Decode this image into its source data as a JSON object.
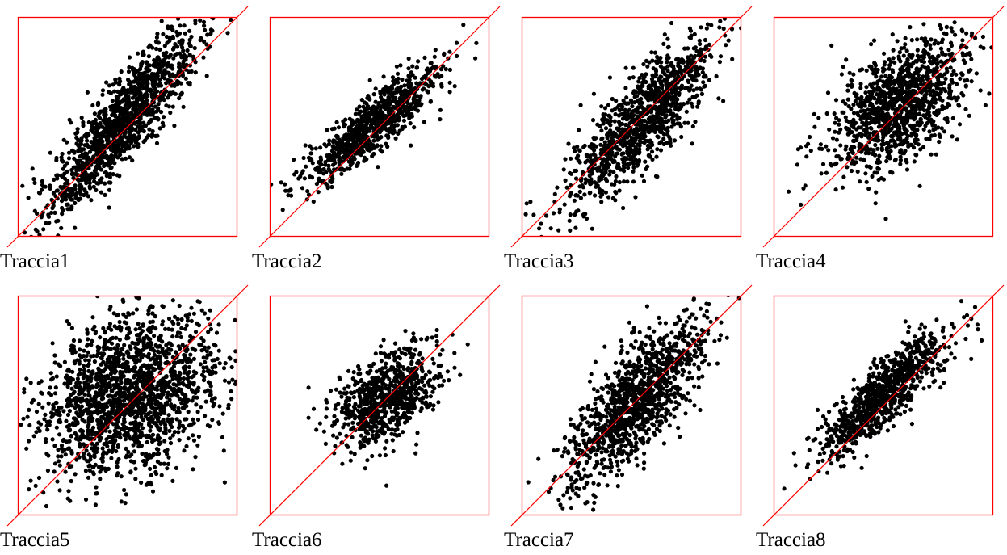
{
  "chart_data": [
    {
      "type": "scatter",
      "title": "Traccia1",
      "colors": {
        "points": "#000000",
        "frame": "#ff0000",
        "diagonal": "#ff0000"
      },
      "xlim": [
        0,
        1
      ],
      "ylim": [
        0,
        1
      ],
      "grid": false,
      "reference_line": "y = x",
      "points_summary": {
        "center": [
          0.48,
          0.53
        ],
        "spread_along": 0.27,
        "spread_across": 0.065,
        "angle_deg": 52,
        "count": 1300
      }
    },
    {
      "type": "scatter",
      "title": "Traccia2",
      "colors": {
        "points": "#000000",
        "frame": "#ff0000",
        "diagonal": "#ff0000"
      },
      "xlim": [
        0,
        1
      ],
      "ylim": [
        0,
        1
      ],
      "grid": false,
      "reference_line": "y = x",
      "points_summary": {
        "center": [
          0.47,
          0.51
        ],
        "spread_along": 0.2,
        "spread_across": 0.05,
        "angle_deg": 40,
        "count": 900
      }
    },
    {
      "type": "scatter",
      "title": "Traccia3",
      "colors": {
        "points": "#000000",
        "frame": "#ff0000",
        "diagonal": "#ff0000"
      },
      "xlim": [
        0,
        1
      ],
      "ylim": [
        0,
        1
      ],
      "grid": false,
      "reference_line": "y = x",
      "points_summary": {
        "center": [
          0.55,
          0.53
        ],
        "spread_along": 0.24,
        "spread_across": 0.075,
        "angle_deg": 50,
        "count": 1100
      }
    },
    {
      "type": "scatter",
      "title": "Traccia4",
      "colors": {
        "points": "#000000",
        "frame": "#ff0000",
        "diagonal": "#ff0000"
      },
      "xlim": [
        0,
        1
      ],
      "ylim": [
        0,
        1
      ],
      "grid": false,
      "reference_line": "y = x",
      "points_summary": {
        "center": [
          0.57,
          0.6
        ],
        "spread_along": 0.2,
        "spread_across": 0.11,
        "angle_deg": 42,
        "count": 1200
      }
    },
    {
      "type": "scatter",
      "title": "Traccia5",
      "colors": {
        "points": "#000000",
        "frame": "#ff0000",
        "diagonal": "#ff0000"
      },
      "xlim": [
        0,
        1
      ],
      "ylim": [
        0,
        1
      ],
      "grid": false,
      "reference_line": "y = x",
      "points_summary": {
        "center": [
          0.5,
          0.55
        ],
        "spread_along": 0.22,
        "spread_across": 0.16,
        "angle_deg": 35,
        "count": 1800
      }
    },
    {
      "type": "scatter",
      "title": "Traccia6",
      "colors": {
        "points": "#000000",
        "frame": "#ff0000",
        "diagonal": "#ff0000"
      },
      "xlim": [
        0,
        1
      ],
      "ylim": [
        0,
        1
      ],
      "grid": false,
      "reference_line": "y = x",
      "points_summary": {
        "center": [
          0.53,
          0.53
        ],
        "spread_along": 0.14,
        "spread_across": 0.085,
        "angle_deg": 40,
        "count": 800
      }
    },
    {
      "type": "scatter",
      "title": "Traccia7",
      "colors": {
        "points": "#000000",
        "frame": "#ff0000",
        "diagonal": "#ff0000"
      },
      "xlim": [
        0,
        1
      ],
      "ylim": [
        0,
        1
      ],
      "grid": false,
      "reference_line": "y = x",
      "points_summary": {
        "center": [
          0.52,
          0.52
        ],
        "spread_along": 0.24,
        "spread_across": 0.085,
        "angle_deg": 53,
        "count": 1200
      }
    },
    {
      "type": "scatter",
      "title": "Traccia8",
      "colors": {
        "points": "#000000",
        "frame": "#ff0000",
        "diagonal": "#ff0000"
      },
      "xlim": [
        0,
        1
      ],
      "ylim": [
        0,
        1
      ],
      "grid": false,
      "reference_line": "y = x",
      "points_summary": {
        "center": [
          0.5,
          0.55
        ],
        "spread_along": 0.19,
        "spread_across": 0.055,
        "angle_deg": 45,
        "count": 900
      }
    }
  ]
}
